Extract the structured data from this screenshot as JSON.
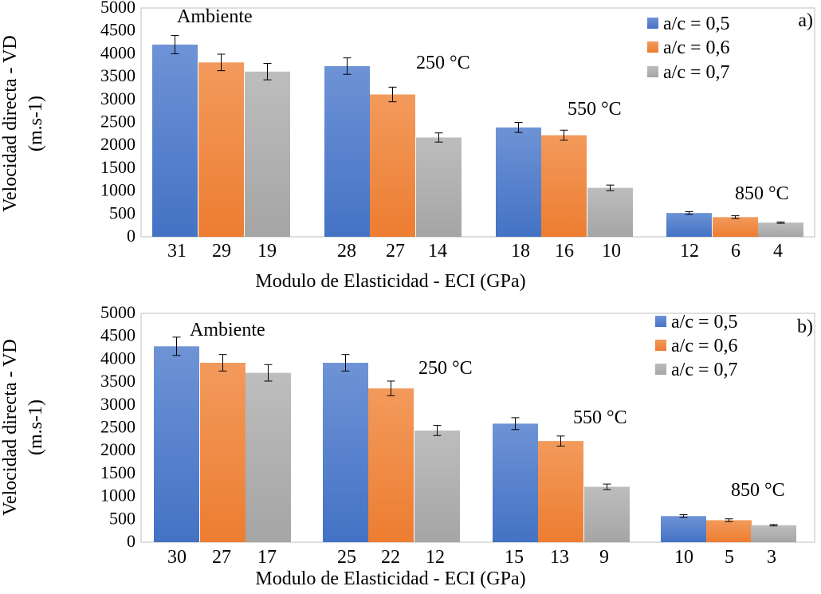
{
  "colors": {
    "series": [
      "#4472C4",
      "#ED7D31",
      "#A5A5A5"
    ],
    "series_light": [
      "#6E93D6",
      "#F29A5C",
      "#BDBDBD"
    ]
  },
  "chart_data": [
    {
      "type": "bar",
      "panel_label": "a)",
      "xlabel": "Modulo de Elasticidad - ECI (GPa)",
      "ylabel_lines": [
        "Velocidad directa - VD",
        "(m.s-1)"
      ],
      "ylim": [
        0,
        5000
      ],
      "yticks": [
        "0",
        "500",
        "1000",
        "1500",
        "2000",
        "2500",
        "3000",
        "3500",
        "4000",
        "4500",
        "5000"
      ],
      "grid": false,
      "legend_position": "top-right",
      "series_names": [
        "a/c = 0,5",
        "a/c = 0,6",
        "a/c = 0,7"
      ],
      "groups": [
        {
          "label": "Ambiente",
          "values": [
            4200,
            3810,
            3610
          ],
          "errors": [
            200,
            180,
            180
          ],
          "tick_labels": [
            "31",
            "29",
            "19"
          ]
        },
        {
          "label": "250 °C",
          "values": [
            3730,
            3110,
            2170
          ],
          "errors": [
            180,
            160,
            100
          ],
          "tick_labels": [
            "28",
            "27",
            "14"
          ]
        },
        {
          "label": "550 °C",
          "values": [
            2390,
            2220,
            1070
          ],
          "errors": [
            110,
            110,
            60
          ],
          "tick_labels": [
            "18",
            "16",
            "10"
          ]
        },
        {
          "label": "850 °C",
          "values": [
            520,
            430,
            310
          ],
          "errors": [
            30,
            30,
            15
          ],
          "tick_labels": [
            "12",
            "6",
            "4"
          ]
        }
      ]
    },
    {
      "type": "bar",
      "panel_label": "b)",
      "xlabel": "Modulo de Elasticidad - ECI (GPa)",
      "ylabel_lines": [
        "Velocidad directa - VD",
        "(m.s-1)"
      ],
      "ylim": [
        0,
        5000
      ],
      "yticks": [
        "0",
        "500",
        "1000",
        "1500",
        "2000",
        "2500",
        "3000",
        "3500",
        "4000",
        "4500",
        "5000"
      ],
      "grid": false,
      "legend_position": "top-right",
      "series_names": [
        "a/c = 0,5",
        "a/c = 0,6",
        "a/c = 0,7"
      ],
      "groups": [
        {
          "label": "Ambiente",
          "values": [
            4280,
            3920,
            3700
          ],
          "errors": [
            200,
            180,
            180
          ],
          "tick_labels": [
            "30",
            "27",
            "17"
          ]
        },
        {
          "label": "250 °C",
          "values": [
            3920,
            3360,
            2440
          ],
          "errors": [
            180,
            160,
            110
          ],
          "tick_labels": [
            "25",
            "22",
            "12"
          ]
        },
        {
          "label": "550 °C",
          "values": [
            2590,
            2210,
            1210
          ],
          "errors": [
            130,
            110,
            60
          ],
          "tick_labels": [
            "15",
            "13",
            "9"
          ]
        },
        {
          "label": "850 °C",
          "values": [
            570,
            480,
            370
          ],
          "errors": [
            30,
            30,
            15
          ],
          "tick_labels": [
            "10",
            "5",
            "3"
          ]
        }
      ]
    }
  ]
}
